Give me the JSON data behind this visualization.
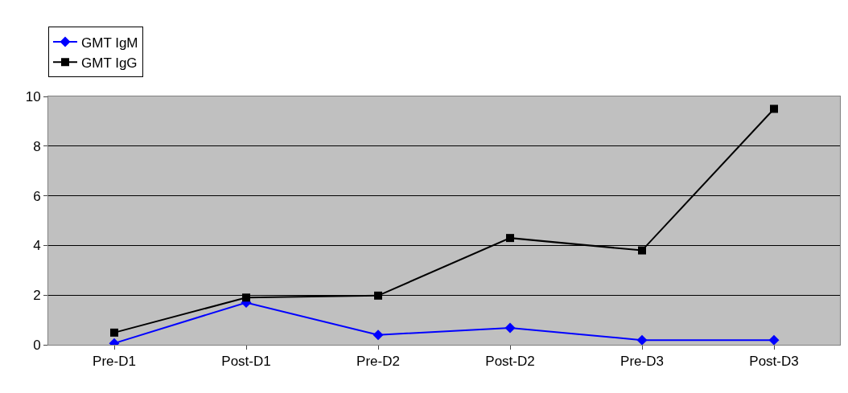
{
  "chart_data": {
    "type": "line",
    "categories": [
      "Pre-D1",
      "Post-D1",
      "Pre-D2",
      "Post-D2",
      "Pre-D3",
      "Post-D3"
    ],
    "series": [
      {
        "name": "GMT IgM",
        "color": "#0000ff",
        "marker": "diamond",
        "values": [
          0.06,
          1.7,
          0.4,
          0.68,
          0.19,
          0.19
        ]
      },
      {
        "name": "GMT IgG",
        "color": "#000000",
        "marker": "square",
        "values": [
          0.49,
          1.9,
          1.98,
          4.3,
          3.8,
          9.5
        ]
      }
    ],
    "ylim": [
      0,
      10
    ],
    "yticks": [
      0,
      2,
      4,
      6,
      8,
      10
    ],
    "grid": "y",
    "legend": "top left"
  }
}
